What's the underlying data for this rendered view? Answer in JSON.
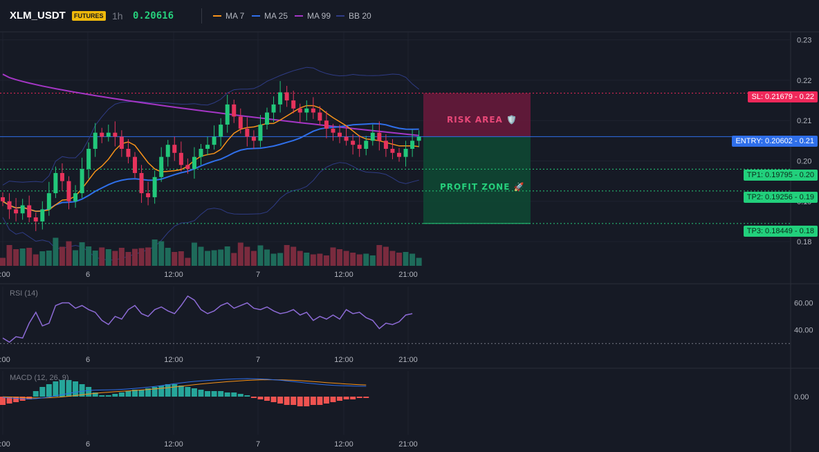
{
  "header": {
    "symbol": "XLM_USDT",
    "badge": "FUTURES",
    "timeframe": "1h",
    "last_price": "0.20616",
    "indicators": [
      {
        "name": "MA 7",
        "color": "#f7931a"
      },
      {
        "name": "MA 25",
        "color": "#2f6fea"
      },
      {
        "name": "MA 99",
        "color": "#a536c6"
      },
      {
        "name": "BB 20",
        "color": "#2f3c86"
      }
    ]
  },
  "levels": {
    "sl": "SL: 0.21679 - 0.22",
    "entry": "ENTRY: 0.20602 - 0.21",
    "tp1": "TP1: 0.19795 - 0.20",
    "tp2": "TP2: 0.19256 - 0.19",
    "tp3": "TP3: 0.18449 - 0.18"
  },
  "zones": {
    "risk": "RISK AREA 🛡️",
    "profit": "PROFIT ZONE 🚀"
  },
  "panels": {
    "rsi_label": "RSI (14)",
    "macd_label": "MACD (12, 26, 9)"
  },
  "chart_data": {
    "type": "candlestick",
    "price_axis_ticks": [
      "0.23",
      "0.22",
      "0.21",
      "0.20",
      "0.19",
      "0.18"
    ],
    "price_range": [
      0.174,
      0.232
    ],
    "time_axis_ticks": [
      "2:00",
      "6",
      "12:00",
      "7",
      "12:00",
      "21:00"
    ],
    "sl_price": 0.21679,
    "entry_price": 0.20602,
    "tp_prices": [
      0.19795,
      0.19256,
      0.18449
    ],
    "close": [
      0.19,
      0.188,
      0.187,
      0.189,
      0.186,
      0.185,
      0.188,
      0.192,
      0.197,
      0.195,
      0.19,
      0.192,
      0.198,
      0.203,
      0.207,
      0.206,
      0.207,
      0.206,
      0.203,
      0.201,
      0.197,
      0.192,
      0.191,
      0.196,
      0.201,
      0.204,
      0.202,
      0.199,
      0.198,
      0.201,
      0.203,
      0.204,
      0.206,
      0.209,
      0.214,
      0.211,
      0.208,
      0.206,
      0.205,
      0.209,
      0.212,
      0.214,
      0.217,
      0.215,
      0.213,
      0.212,
      0.213,
      0.212,
      0.21,
      0.208,
      0.207,
      0.206,
      0.205,
      0.204,
      0.203,
      0.205,
      0.207,
      0.205,
      0.203,
      0.202,
      0.201,
      0.203,
      0.205,
      0.206
    ],
    "rsi_ticks": [
      "60.00",
      "40.00"
    ],
    "rsi": [
      34,
      31,
      35,
      34,
      45,
      53,
      43,
      45,
      58,
      60,
      60,
      56,
      58,
      55,
      53,
      47,
      44,
      50,
      48,
      55,
      58,
      52,
      50,
      55,
      57,
      54,
      52,
      58,
      65,
      62,
      55,
      52,
      54,
      58,
      60,
      56,
      58,
      60,
      56,
      55,
      57,
      54,
      52,
      53,
      55,
      51,
      53,
      47,
      50,
      48,
      51,
      48,
      55,
      52,
      53,
      49,
      47,
      41,
      45,
      44,
      46,
      51,
      52
    ],
    "macd_ticks": [
      "0.00"
    ],
    "macd_hist": [
      -0.0006,
      -0.0005,
      -0.0004,
      -0.0003,
      -0.0002,
      0.0004,
      0.0007,
      0.0009,
      0.0011,
      0.0012,
      0.0012,
      0.0011,
      0.0009,
      0.0007,
      0.0003,
      0.0001,
      0.0001,
      0.0002,
      0.0003,
      0.0004,
      0.0005,
      0.0005,
      0.0006,
      0.0007,
      0.0008,
      0.0009,
      0.0009,
      0.0008,
      0.0007,
      0.0006,
      0.0005,
      0.0004,
      0.0004,
      0.0004,
      0.0003,
      0.0003,
      0.0002,
      0.0001,
      -0.0001,
      -0.0002,
      -0.0003,
      -0.0004,
      -0.0005,
      -0.0006,
      -0.0006,
      -0.0007,
      -0.0007,
      -0.0006,
      -0.0006,
      -0.0005,
      -0.0004,
      -0.0003,
      -0.0002,
      -0.0002,
      -0.0001,
      -0.0001
    ]
  }
}
